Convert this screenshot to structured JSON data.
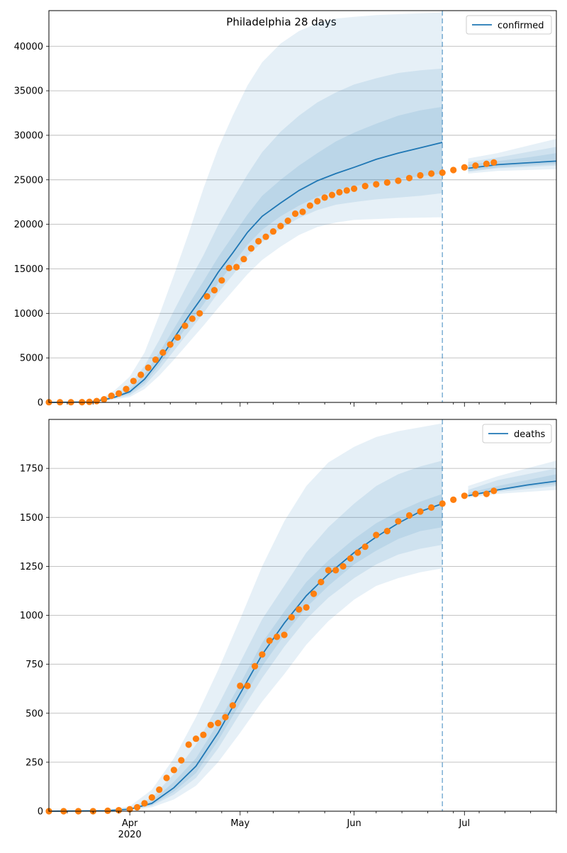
{
  "figure": {
    "title": "Philadelphia 28 days"
  },
  "colors": {
    "model_line": "#1f77b4",
    "band": "#1f77b4",
    "observed": "#ff7f0e",
    "grid": "#b0b0b0",
    "forecast_line": "#1f77b4"
  },
  "chart_data": [
    {
      "type": "line",
      "title": "Philadelphia 28 days",
      "legend": {
        "label": "confirmed",
        "placement": "top-right"
      },
      "xlim": [
        "2020-03-10",
        "2020-07-26"
      ],
      "x_tick_labels": [
        {
          "date": "2020-04-01",
          "label": "Apr",
          "sublabel": "2020"
        },
        {
          "date": "2020-05-01",
          "label": "May",
          "sublabel": ""
        },
        {
          "date": "2020-06-01",
          "label": "Jun",
          "sublabel": ""
        },
        {
          "date": "2020-07-01",
          "label": "Jul",
          "sublabel": ""
        }
      ],
      "ylim": [
        0,
        44000
      ],
      "y_ticks": [
        0,
        5000,
        10000,
        15000,
        20000,
        25000,
        30000,
        35000,
        40000
      ],
      "grid": "horizontal",
      "forecast_start": "2020-06-25",
      "model": {
        "name": "confirmed",
        "x": [
          "2020-03-10",
          "2020-03-21",
          "2020-03-25",
          "2020-03-28",
          "2020-04-01",
          "2020-04-05",
          "2020-04-09",
          "2020-04-13",
          "2020-04-17",
          "2020-04-21",
          "2020-04-25",
          "2020-04-29",
          "2020-05-03",
          "2020-05-07",
          "2020-05-12",
          "2020-05-17",
          "2020-05-22",
          "2020-05-27",
          "2020-06-01",
          "2020-06-07",
          "2020-06-13",
          "2020-06-19",
          "2020-06-25",
          "2020-07-02",
          "2020-07-10",
          "2020-07-18",
          "2020-07-26"
        ],
        "y": [
          0,
          50,
          300,
          600,
          1200,
          2600,
          4700,
          7200,
          9700,
          12000,
          14600,
          16800,
          19100,
          20900,
          22400,
          23800,
          24900,
          25700,
          26400,
          27300,
          28000,
          28600,
          29200,
          26300,
          26700,
          26900,
          27100
        ],
        "bands": [
          {
            "lower": [
              0,
              30,
              150,
              350,
              600,
              1500,
              3000,
              4800,
              6700,
              8600,
              10600,
              12500,
              14400,
              16000,
              17500,
              18800,
              19700,
              20200,
              20500,
              20600,
              20700,
              20750,
              20800,
              25700,
              26000,
              26100,
              26200
            ],
            "upper": [
              0,
              100,
              600,
              1400,
              2900,
              5600,
              9800,
              14300,
              19000,
              24000,
              28500,
              32200,
              35600,
              38200,
              40300,
              41700,
              42600,
              43100,
              43300,
              43500,
              43600,
              43700,
              43800,
              27400,
              28000,
              28800,
              29600
            ]
          },
          {
            "lower": [
              0,
              35,
              200,
              450,
              800,
              1900,
              3700,
              5800,
              7900,
              10000,
              12300,
              14300,
              16400,
              18000,
              19500,
              20700,
              21600,
              22200,
              22500,
              22800,
              23000,
              23200,
              23500,
              25900,
              26300,
              26450,
              26600
            ],
            "upper": [
              0,
              80,
              450,
              950,
              2000,
              4100,
              7000,
              10300,
              13500,
              16500,
              19900,
              22800,
              25600,
              28100,
              30400,
              32200,
              33700,
              34800,
              35700,
              36400,
              37000,
              37300,
              37500,
              27000,
              27500,
              28100,
              28700
            ]
          },
          {
            "lower": [
              0,
              40,
              250,
              520,
              1000,
              2200,
              4200,
              6500,
              8800,
              11000,
              13400,
              15500,
              17700,
              19400,
              20900,
              22100,
              23100,
              23800,
              24300,
              24700,
              25100,
              25400,
              25700,
              26000,
              26400,
              26600,
              26800
            ],
            "upper": [
              0,
              60,
              350,
              700,
              1500,
              3200,
              5600,
              8300,
              11000,
              13600,
              16300,
              18700,
              21100,
              23200,
              25000,
              26600,
              28000,
              29300,
              30300,
              31300,
              32200,
              32800,
              33200,
              26700,
              27100,
              27500,
              28000
            ]
          }
        ]
      },
      "observed": {
        "name": "observed",
        "x": [
          "2020-03-10",
          "2020-03-13",
          "2020-03-16",
          "2020-03-19",
          "2020-03-21",
          "2020-03-23",
          "2020-03-25",
          "2020-03-27",
          "2020-03-29",
          "2020-03-31",
          "2020-04-02",
          "2020-04-04",
          "2020-04-06",
          "2020-04-08",
          "2020-04-10",
          "2020-04-12",
          "2020-04-14",
          "2020-04-16",
          "2020-04-18",
          "2020-04-20",
          "2020-04-22",
          "2020-04-24",
          "2020-04-26",
          "2020-04-28",
          "2020-04-30",
          "2020-05-02",
          "2020-05-04",
          "2020-05-06",
          "2020-05-08",
          "2020-05-10",
          "2020-05-12",
          "2020-05-14",
          "2020-05-16",
          "2020-05-18",
          "2020-05-20",
          "2020-05-22",
          "2020-05-24",
          "2020-05-26",
          "2020-05-28",
          "2020-05-30",
          "2020-06-01",
          "2020-06-04",
          "2020-06-07",
          "2020-06-10",
          "2020-06-13",
          "2020-06-16",
          "2020-06-19",
          "2020-06-22",
          "2020-06-25",
          "2020-06-28",
          "2020-07-01",
          "2020-07-04",
          "2020-07-07",
          "2020-07-09"
        ],
        "y": [
          20,
          20,
          20,
          30,
          60,
          150,
          350,
          750,
          1000,
          1500,
          2400,
          3100,
          3900,
          4800,
          5600,
          6500,
          7300,
          8600,
          9400,
          10000,
          11900,
          12600,
          13700,
          15100,
          15200,
          16100,
          17300,
          18100,
          18600,
          19200,
          19800,
          20400,
          21200,
          21400,
          22100,
          22600,
          23000,
          23300,
          23600,
          23800,
          24000,
          24300,
          24500,
          24700,
          24900,
          25200,
          25500,
          25700,
          25800,
          26100,
          26400,
          26600,
          26800,
          26950
        ]
      }
    },
    {
      "type": "line",
      "title": "",
      "legend": {
        "label": "deaths",
        "placement": "top-right"
      },
      "xlim": [
        "2020-03-10",
        "2020-07-26"
      ],
      "x_tick_labels": [
        {
          "date": "2020-04-01",
          "label": "Apr",
          "sublabel": "2020"
        },
        {
          "date": "2020-05-01",
          "label": "May",
          "sublabel": ""
        },
        {
          "date": "2020-06-01",
          "label": "Jun",
          "sublabel": ""
        },
        {
          "date": "2020-07-01",
          "label": "Jul",
          "sublabel": ""
        }
      ],
      "ylim": [
        0,
        2000
      ],
      "y_ticks": [
        0,
        250,
        500,
        750,
        1000,
        1250,
        1500,
        1750
      ],
      "grid": "horizontal",
      "forecast_start": "2020-06-25",
      "model": {
        "name": "deaths",
        "x": [
          "2020-03-10",
          "2020-03-25",
          "2020-04-01",
          "2020-04-07",
          "2020-04-13",
          "2020-04-19",
          "2020-04-25",
          "2020-05-01",
          "2020-05-07",
          "2020-05-13",
          "2020-05-19",
          "2020-05-25",
          "2020-06-01",
          "2020-06-07",
          "2020-06-13",
          "2020-06-19",
          "2020-06-25",
          "2020-07-02",
          "2020-07-10",
          "2020-07-18",
          "2020-07-26"
        ],
        "y": [
          0,
          2,
          10,
          40,
          120,
          230,
          400,
          600,
          800,
          960,
          1100,
          1210,
          1320,
          1400,
          1470,
          1530,
          1570,
          1610,
          1640,
          1665,
          1685
        ],
        "bands": [
          {
            "lower": [
              0,
              1,
              5,
              20,
              60,
              130,
              250,
              400,
              560,
              700,
              850,
              970,
              1080,
              1150,
              1190,
              1220,
              1240,
              1600,
              1620,
              1630,
              1640
            ],
            "upper": [
              0,
              5,
              25,
              110,
              270,
              480,
              720,
              980,
              1250,
              1480,
              1660,
              1780,
              1860,
              1910,
              1940,
              1960,
              1980,
              1660,
              1710,
              1750,
              1790
            ]
          },
          {
            "lower": [
              0,
              1,
              7,
              28,
              85,
              170,
              320,
              500,
              680,
              840,
              980,
              1090,
              1190,
              1260,
              1310,
              1340,
              1360,
              1605,
              1630,
              1645,
              1660
            ],
            "upper": [
              0,
              3,
              16,
              70,
              190,
              340,
              540,
              760,
              980,
              1150,
              1320,
              1450,
              1570,
              1660,
              1720,
              1760,
              1790,
              1640,
              1690,
              1720,
              1750
            ]
          },
          {
            "lower": [
              0,
              1,
              8,
              32,
              100,
              195,
              360,
              550,
              740,
              900,
              1040,
              1150,
              1260,
              1330,
              1390,
              1430,
              1450,
              1608,
              1635,
              1655,
              1670
            ],
            "upper": [
              0,
              3,
              13,
              52,
              150,
              270,
              450,
              650,
              860,
              1020,
              1170,
              1280,
              1390,
              1470,
              1530,
              1580,
              1620,
              1625,
              1660,
              1690,
              1720
            ]
          }
        ]
      },
      "observed": {
        "name": "observed",
        "x": [
          "2020-03-10",
          "2020-03-14",
          "2020-03-18",
          "2020-03-22",
          "2020-03-26",
          "2020-03-29",
          "2020-04-01",
          "2020-04-03",
          "2020-04-05",
          "2020-04-07",
          "2020-04-09",
          "2020-04-11",
          "2020-04-13",
          "2020-04-15",
          "2020-04-17",
          "2020-04-19",
          "2020-04-21",
          "2020-04-23",
          "2020-04-25",
          "2020-04-27",
          "2020-04-29",
          "2020-05-01",
          "2020-05-03",
          "2020-05-05",
          "2020-05-07",
          "2020-05-09",
          "2020-05-11",
          "2020-05-13",
          "2020-05-15",
          "2020-05-17",
          "2020-05-19",
          "2020-05-21",
          "2020-05-23",
          "2020-05-25",
          "2020-05-27",
          "2020-05-29",
          "2020-05-31",
          "2020-06-02",
          "2020-06-04",
          "2020-06-07",
          "2020-06-10",
          "2020-06-13",
          "2020-06-16",
          "2020-06-19",
          "2020-06-22",
          "2020-06-25",
          "2020-06-28",
          "2020-07-01",
          "2020-07-04",
          "2020-07-07",
          "2020-07-09"
        ],
        "y": [
          0,
          0,
          0,
          0,
          2,
          5,
          10,
          20,
          40,
          70,
          110,
          170,
          210,
          260,
          340,
          370,
          390,
          440,
          450,
          480,
          540,
          640,
          640,
          740,
          800,
          870,
          890,
          900,
          990,
          1030,
          1040,
          1110,
          1170,
          1230,
          1230,
          1250,
          1290,
          1320,
          1350,
          1410,
          1430,
          1480,
          1510,
          1530,
          1550,
          1570,
          1590,
          1610,
          1620,
          1620,
          1635
        ]
      }
    }
  ]
}
